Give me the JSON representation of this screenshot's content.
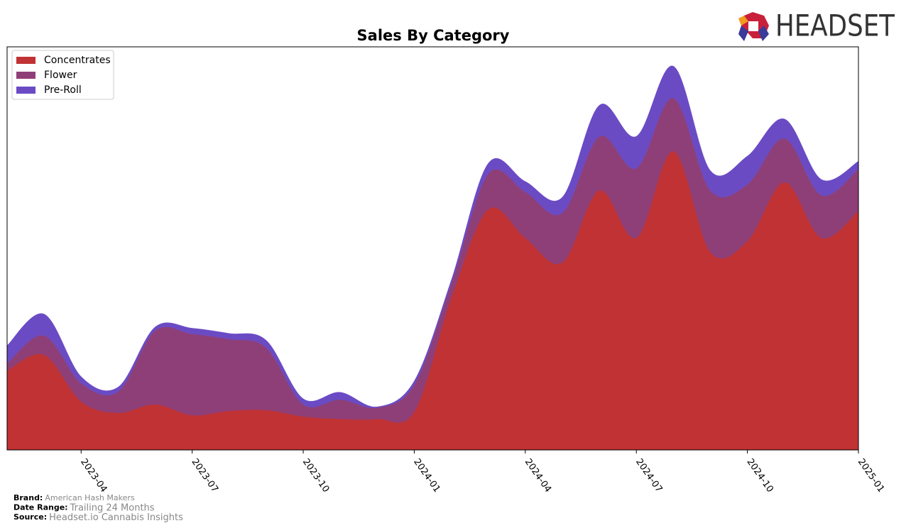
{
  "chart_data": {
    "type": "stacked-area",
    "title": "Sales By Category",
    "x": [
      "2023-02",
      "2023-03",
      "2023-04",
      "2023-05",
      "2023-06",
      "2023-07",
      "2023-08",
      "2023-09",
      "2023-10",
      "2023-11",
      "2023-12",
      "2024-01",
      "2024-02",
      "2024-03",
      "2024-04",
      "2024-05",
      "2024-06",
      "2024-07",
      "2024-08",
      "2024-09",
      "2024-10",
      "2024-11",
      "2024-12",
      "2025-01"
    ],
    "xticks": [
      "2023-04",
      "2023-07",
      "2023-10",
      "2024-01",
      "2024-04",
      "2024-07",
      "2024-10",
      "2025-01"
    ],
    "ylim": [
      0,
      100
    ],
    "legend": "upper left",
    "series": [
      {
        "name": "Concentrates",
        "color": "#c03233",
        "values": [
          19.7,
          23.6,
          12.0,
          9.2,
          11.3,
          8.6,
          9.7,
          9.9,
          8.3,
          7.7,
          7.7,
          9.5,
          37.7,
          59.7,
          52.6,
          46.5,
          64.4,
          52.6,
          74.1,
          49.1,
          51.8,
          66.4,
          52.6,
          59.3
        ]
      },
      {
        "name": "Flower",
        "color": "#8f3f78",
        "values": [
          1.8,
          4.8,
          4.6,
          5.3,
          18.3,
          20.2,
          17.8,
          15.5,
          3.0,
          4.8,
          2.8,
          6.7,
          3.5,
          8.8,
          11.4,
          12.3,
          13.4,
          17.3,
          13.2,
          15.3,
          14.1,
          10.9,
          10.6,
          10.4
        ]
      },
      {
        "name": "Pre-Roll",
        "color": "#6a4bc4",
        "values": [
          4.4,
          5.3,
          1.6,
          1.1,
          0.9,
          1.4,
          1.4,
          1.8,
          1.4,
          1.8,
          0.2,
          0.9,
          0.9,
          2.6,
          2.6,
          3.9,
          7.7,
          7.9,
          7.9,
          4.9,
          7.0,
          4.8,
          3.9,
          1.9
        ]
      }
    ]
  },
  "logo_text": "HEADSET",
  "footer": [
    {
      "label": "Brand:",
      "value": "American Hash Makers"
    },
    {
      "label": "Date Range:",
      "value": "Trailing 24 Months"
    },
    {
      "label": "Source:",
      "value": "Headset.io Cannabis Insights"
    }
  ]
}
